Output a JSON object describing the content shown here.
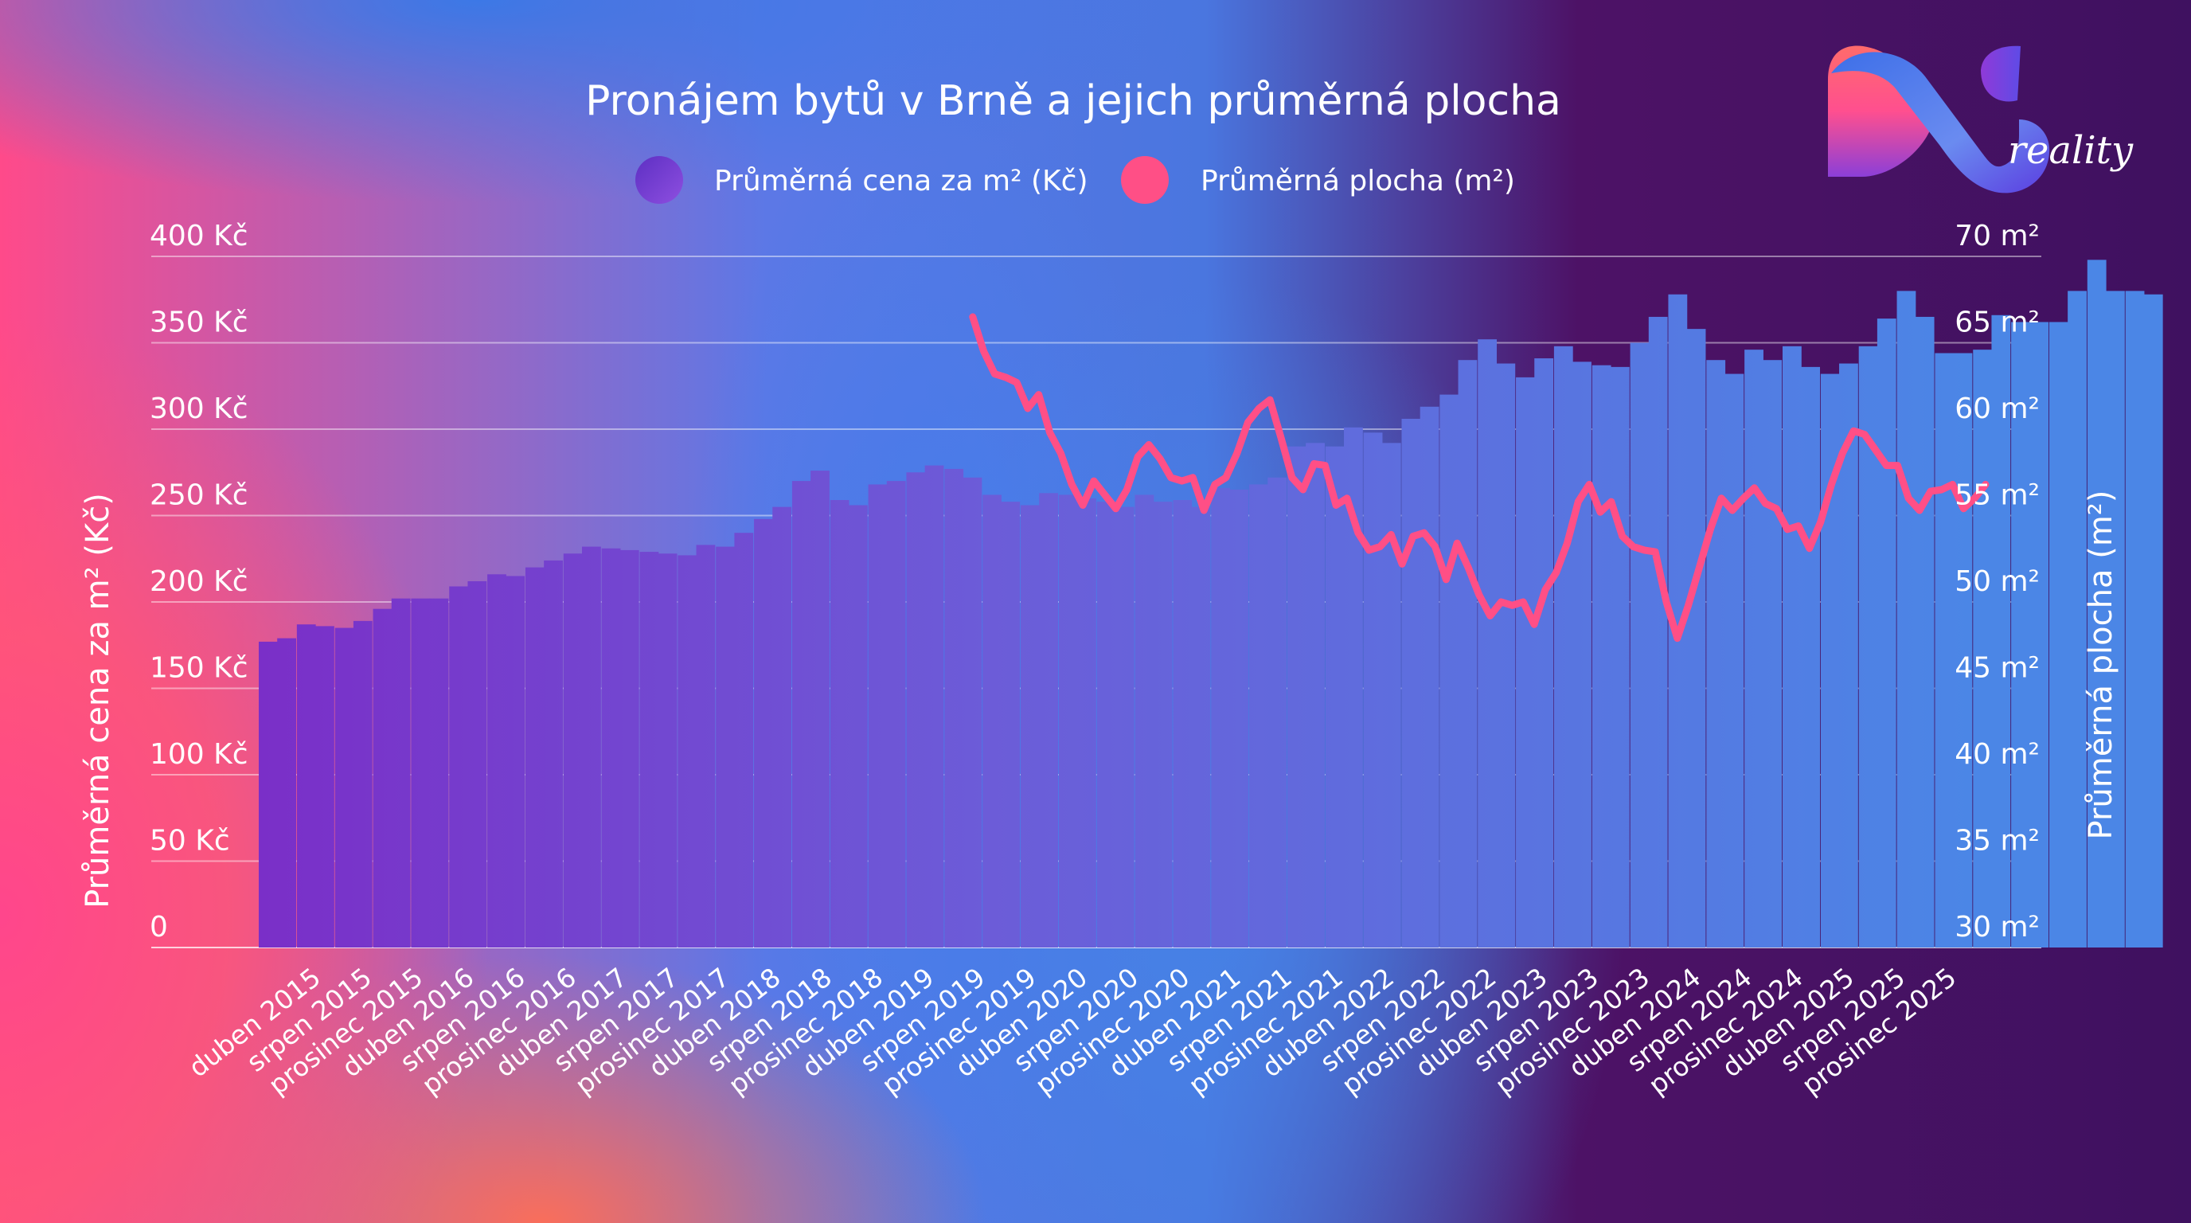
{
  "chart_data": {
    "type": "bar+line",
    "title": "Pronájem bytů v Brně a jejich průměrná plocha",
    "legend": [
      {
        "label": "Průměrná cena za m² (Kč)",
        "type": "bar",
        "color": "#7a3fd0"
      },
      {
        "label": "Průměrná plocha (m²)",
        "type": "line",
        "color": "#ff4f86"
      }
    ],
    "ylabel": "Průměrná cena za m² (Kč)",
    "y2label": "Průměrná plocha (m²)",
    "ylim": [
      0,
      400
    ],
    "y2lim": [
      30,
      70
    ],
    "yticks": [
      "0",
      "50 Kč",
      "100 Kč",
      "150 Kč",
      "200 Kč",
      "250 Kč",
      "300 Kč",
      "350 Kč",
      "400 Kč"
    ],
    "y2ticks": [
      "30 m²",
      "35 m²",
      "40 m²",
      "45 m²",
      "50 m²",
      "55 m²",
      "60 m²",
      "65 m²",
      "70 m²"
    ],
    "grid": true,
    "categories": [
      "duben 2015",
      "srpen 2015",
      "prosinec 2015",
      "duben 2016",
      "srpen 2016",
      "prosinec 2016",
      "duben 2017",
      "srpen 2017",
      "prosinec 2017",
      "duben 2018",
      "srpen 2018",
      "prosinec 2018",
      "duben 2019",
      "srpen 2019",
      "prosinec 2019",
      "duben 2020",
      "srpen 2020",
      "prosinec 2020",
      "duben 2021",
      "srpen 2021",
      "prosinec 2021",
      "duben 2022",
      "srpen 2022",
      "prosinec 2022",
      "duben 2023",
      "srpen 2023",
      "prosinec 2023",
      "duben 2024",
      "srpen 2024",
      "prosinec 2024",
      "duben 2025",
      "srpen 2025",
      "prosinec 2025"
    ],
    "bar_series": {
      "name": "Průměrná cena za m² (Kč)",
      "values": [
        [
          177,
          179
        ],
        [
          187,
          186
        ],
        [
          185,
          189
        ],
        [
          196,
          202
        ],
        [
          202,
          202
        ],
        [
          209,
          212
        ],
        [
          216,
          215
        ],
        [
          220,
          224
        ],
        [
          228,
          232
        ],
        [
          231,
          230
        ],
        [
          229,
          228
        ],
        [
          227,
          233
        ],
        [
          232,
          240
        ],
        [
          248,
          255
        ],
        [
          270,
          276
        ],
        [
          259,
          256
        ],
        [
          268,
          270
        ],
        [
          275,
          279
        ],
        [
          277,
          272
        ],
        [
          262,
          258
        ],
        [
          256,
          263
        ],
        [
          262,
          260
        ],
        [
          258,
          255
        ],
        [
          262,
          258
        ],
        [
          259,
          255
        ],
        [
          266,
          265
        ],
        [
          268,
          272
        ],
        [
          290,
          292
        ],
        [
          290,
          301
        ],
        [
          298,
          292
        ],
        [
          306,
          313
        ],
        [
          320,
          340
        ],
        [
          352,
          338
        ],
        [
          330,
          341
        ],
        [
          348,
          339
        ],
        [
          337,
          336
        ],
        [
          350,
          365
        ],
        [
          378,
          358
        ],
        [
          340,
          332
        ],
        [
          346,
          340
        ],
        [
          348,
          336
        ],
        [
          332,
          338
        ],
        [
          348,
          364
        ],
        [
          380,
          365
        ],
        [
          344,
          344
        ],
        [
          346,
          366
        ],
        [
          362,
          362
        ],
        [
          362,
          380
        ],
        [
          398,
          380
        ],
        [
          380,
          378
        ]
      ]
    },
    "line_series": {
      "name": "Průměrná plocha (m²)",
      "x_start_index": 9.3,
      "values": [
        66.5,
        64.5,
        63.2,
        63,
        62.7,
        61.2,
        62,
        59.8,
        58.6,
        56.8,
        55.6,
        57,
        56.2,
        55.4,
        56.5,
        58.4,
        59.1,
        58.3,
        57.2,
        57,
        57.2,
        55.3,
        56.8,
        57.2,
        58.6,
        60.4,
        61.2,
        61.7,
        59.5,
        57.2,
        56.5,
        58,
        57.9,
        55.6,
        56,
        54,
        53,
        53.2,
        53.9,
        52.2,
        53.8,
        54,
        53.2,
        51.3,
        53.4,
        52,
        50.4,
        49.2,
        50,
        49.8,
        50,
        48.7,
        50.7,
        51.7,
        53.4,
        55.8,
        56.8,
        55.2,
        55.8,
        53.8,
        53.2,
        53,
        52.9,
        50,
        47.9,
        49.8,
        52,
        54.2,
        56,
        55.3,
        56,
        56.6,
        55.7,
        55.4,
        54.2,
        54.4,
        53.1,
        54.6,
        56.8,
        58.6,
        59.9,
        59.7,
        58.8,
        57.9,
        57.9,
        56,
        55.3,
        56.4,
        56.5,
        56.8,
        55.4,
        56,
        56.8
      ]
    }
  },
  "logo": {
    "word": "reality"
  }
}
